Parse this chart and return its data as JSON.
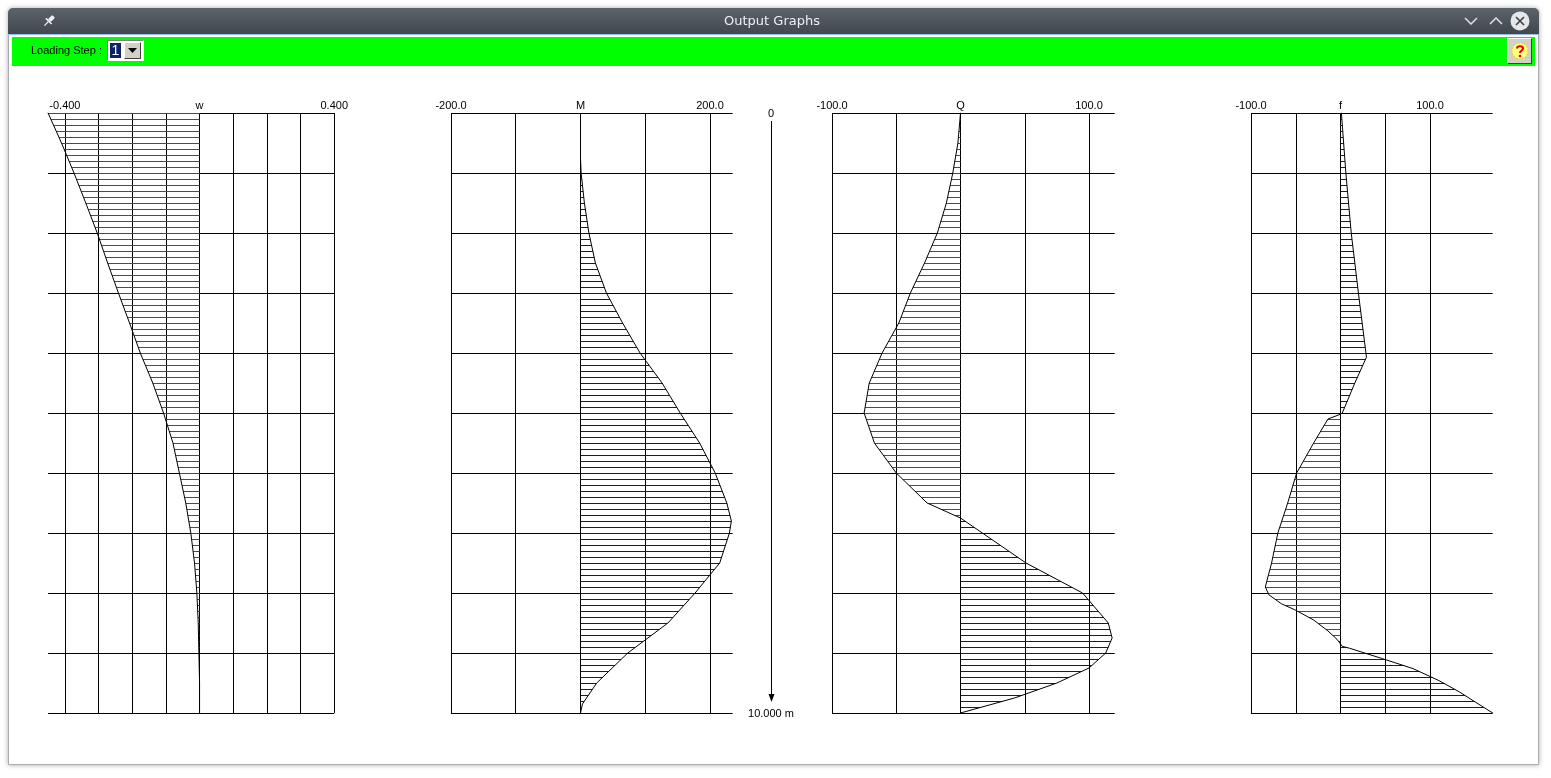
{
  "chart_data": [
    {
      "type": "other",
      "title": "Output Graphs",
      "annotations": [
        "Loading Step :",
        "1"
      ]
    },
    {
      "type": "area",
      "orientation": "horizontal",
      "xlabel": "w",
      "x": [
        0,
        0.5,
        1,
        1.5,
        2,
        2.5,
        3,
        3.5,
        4,
        4.5,
        5,
        5.5,
        6,
        6.5,
        7,
        7.5,
        8,
        8.5,
        9,
        9.5,
        10
      ],
      "series": [
        {
          "type": "line",
          "color": "#000000",
          "values": [
            -0.45,
            -0.41,
            -0.373,
            -0.338,
            -0.304,
            -0.273,
            -0.241,
            -0.208,
            -0.176,
            -0.139,
            -0.107,
            -0.079,
            -0.06,
            -0.041,
            -0.026,
            -0.015,
            -0.008,
            -0.004,
            -0.002,
            0,
            0
          ]
        },
        {
          "color": "#ff0000",
          "values": [
            -0.45,
            -0.41,
            -0.373,
            -0.338,
            -0.304,
            -0.273,
            -0.241,
            -0.208,
            -0.176,
            -0.139,
            -0.107,
            -0.079,
            -0.06,
            -0.041,
            -0.026,
            -0.015,
            -0.008,
            -0.004,
            -0.002,
            null,
            null
          ]
        }
      ],
      "xlim": [
        -0.45,
        0.4
      ],
      "xticks": [
        {
          "value": -0.4,
          "label": "-0.400"
        },
        {
          "value": -0.3,
          "label": null
        },
        {
          "value": -0.2,
          "label": null
        },
        {
          "value": -0.1,
          "label": null
        },
        {
          "value": 0,
          "label": null
        },
        {
          "value": 0.1,
          "label": null
        },
        {
          "value": 0.2,
          "label": null
        },
        {
          "value": 0.3,
          "label": null
        },
        {
          "value": 0.4,
          "label": "0.400"
        }
      ],
      "ylim": [
        10,
        0
      ],
      "yticks": [
        0,
        1,
        2,
        3,
        4,
        5,
        6,
        7,
        8,
        9,
        10
      ],
      "grid": true,
      "tick_labels": "x"
    },
    {
      "type": "area",
      "orientation": "horizontal",
      "xlabel": "M",
      "x": [
        0.75,
        1,
        1.5,
        2,
        2.5,
        3,
        3.5,
        4,
        4.5,
        5,
        5.5,
        6,
        6.5,
        6.8,
        7,
        7.5,
        8,
        8.5,
        9,
        9.5,
        9.85,
        10
      ],
      "series": [
        {
          "type": "line",
          "color": "#000000",
          "values": [
            0,
            1,
            6,
            13,
            23,
            40,
            65,
            92,
            126,
            154,
            184,
            208,
            226,
            233,
            230,
            215,
            177,
            135,
            73,
            25,
            3,
            0
          ]
        },
        {
          "color": "#0000ff",
          "values": [
            null,
            1,
            6,
            13,
            23,
            40,
            65,
            92,
            126,
            154,
            184,
            208,
            226,
            233,
            230,
            215,
            177,
            135,
            73,
            25,
            3,
            null
          ]
        }
      ],
      "xlim": [
        -200,
        235
      ],
      "xticks": [
        {
          "value": -200,
          "label": "-200.0"
        },
        {
          "value": -100,
          "label": null
        },
        {
          "value": 0,
          "label": null
        },
        {
          "value": 100,
          "label": null
        },
        {
          "value": 200,
          "label": "200.0"
        }
      ],
      "ylim": [
        10,
        0
      ],
      "yticks": [
        0,
        1,
        2,
        3,
        4,
        5,
        6,
        7,
        8,
        9,
        10
      ],
      "grid": true,
      "tick_labels": "x"
    },
    {
      "type": "area",
      "orientation": "horizontal",
      "xlabel": "Q",
      "x": [
        0,
        0.5,
        1,
        1.5,
        2,
        2.5,
        3,
        3.5,
        4,
        4.5,
        5,
        5.5,
        6,
        6.5,
        6.75,
        7,
        7.5,
        8,
        8.5,
        8.75,
        9,
        9.25,
        9.5,
        9.75,
        10
      ],
      "series": [
        {
          "type": "line",
          "color": "#000000",
          "values": [
            0,
            -2,
            -6,
            -11,
            -18,
            -28,
            -39,
            -48,
            -61,
            -71,
            -75,
            -67,
            -50,
            -26,
            0,
            17,
            51,
            95,
            115,
            118,
            113,
            100,
            75,
            42,
            0
          ]
        },
        {
          "color": "#ff0000",
          "values": [
            0,
            -2,
            -6,
            -11,
            -18,
            -28,
            -39,
            -48,
            -61,
            -71,
            -75,
            -67,
            -50,
            -26,
            0,
            null,
            null,
            null,
            null,
            null,
            null,
            null,
            null,
            null,
            null
          ]
        },
        {
          "color": "#0000ff",
          "values": [
            null,
            null,
            null,
            null,
            null,
            null,
            null,
            null,
            null,
            null,
            null,
            null,
            null,
            null,
            0,
            17,
            51,
            95,
            115,
            118,
            113,
            100,
            75,
            42,
            0
          ]
        }
      ],
      "xlim": [
        -100,
        120
      ],
      "xticks": [
        {
          "value": -100,
          "label": "-100.0"
        },
        {
          "value": -50,
          "label": null
        },
        {
          "value": 0,
          "label": null
        },
        {
          "value": 50,
          "label": null
        },
        {
          "value": 100,
          "label": "100.0"
        }
      ],
      "ylim": [
        10,
        0
      ],
      "yticks": [
        {
          "value": 0,
          "label": "0"
        },
        {
          "value": 1,
          "label": null
        },
        {
          "value": 2,
          "label": null
        },
        {
          "value": 3,
          "label": null
        },
        {
          "value": 4,
          "label": null
        },
        {
          "value": 5,
          "label": null
        },
        {
          "value": 6,
          "label": null
        },
        {
          "value": 7,
          "label": null
        },
        {
          "value": 8,
          "label": null
        },
        {
          "value": 9,
          "label": null
        },
        {
          "value": 10,
          "label": "10.000 m"
        }
      ],
      "grid": true
    },
    {
      "type": "area",
      "orientation": "horizontal",
      "xlabel": "f",
      "x": [
        0,
        1,
        2,
        3,
        4.07,
        4.5,
        5,
        5.02,
        5.1,
        5.5,
        6,
        6.5,
        7,
        7.5,
        7.9,
        8.03,
        8.18,
        8.28,
        8.45,
        8.62,
        8.77,
        8.85,
        8.89,
        8.92,
        9.09,
        9.26,
        9.46,
        9.65,
        10
      ],
      "series": [
        {
          "type": "line",
          "color": "#000000",
          "values": [
            1,
            6,
            12,
            20,
            29,
            16,
            2,
            0,
            -14,
            -30,
            -49,
            -59,
            -70,
            -77,
            -84,
            -80,
            -66,
            -51,
            -30,
            -15,
            -4,
            0,
            2,
            10,
            46,
            81,
            110,
            133,
            170
          ]
        },
        {
          "color": "#0000ff",
          "values": [
            1,
            6,
            12,
            20,
            29,
            16,
            2,
            0,
            null,
            null,
            null,
            null,
            null,
            null,
            null,
            null,
            null,
            null,
            null,
            null,
            null,
            0,
            2,
            10,
            46,
            81,
            110,
            133,
            170
          ]
        },
        {
          "color": "#ff0000",
          "values": [
            null,
            null,
            null,
            null,
            null,
            null,
            null,
            0,
            -14,
            -30,
            -49,
            -59,
            -70,
            -77,
            -84,
            -80,
            -66,
            -51,
            -30,
            -15,
            -4,
            0,
            null,
            null,
            null,
            null,
            null,
            null,
            null
          ]
        }
      ],
      "xlim": [
        -100,
        170
      ],
      "xticks": [
        {
          "value": -100,
          "label": "-100.0"
        },
        {
          "value": -50,
          "label": null
        },
        {
          "value": 0,
          "label": null
        },
        {
          "value": 50,
          "label": null
        },
        {
          "value": 100,
          "label": "100.0"
        }
      ],
      "ylim": [
        10,
        0
      ],
      "yticks": [
        0,
        1,
        2,
        3,
        4,
        5,
        6,
        7,
        8,
        9,
        10
      ],
      "grid": true,
      "tick_labels": "x"
    }
  ]
}
